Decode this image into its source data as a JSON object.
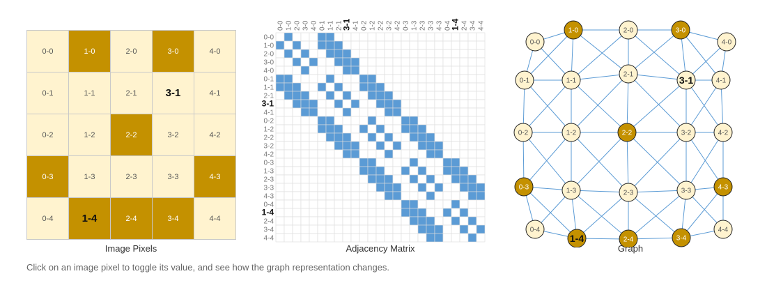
{
  "grid": {
    "size": 5,
    "on_cells": [
      "1-0",
      "3-0",
      "2-2",
      "0-3",
      "4-3",
      "1-4",
      "2-4",
      "3-4"
    ],
    "highlighted": [
      "3-1",
      "1-4"
    ]
  },
  "labels": {
    "image_pixels": "Image Pixels",
    "adjacency_matrix": "Adjacency Matrix",
    "graph": "Graph",
    "instruction": "Click on an image pixel to toggle its value, and see how the graph representation changes."
  },
  "colors": {
    "on": "#c49100",
    "off": "#fff3cf",
    "matrix_fill": "#5b9bd5",
    "edge": "#5b9bd5"
  }
}
